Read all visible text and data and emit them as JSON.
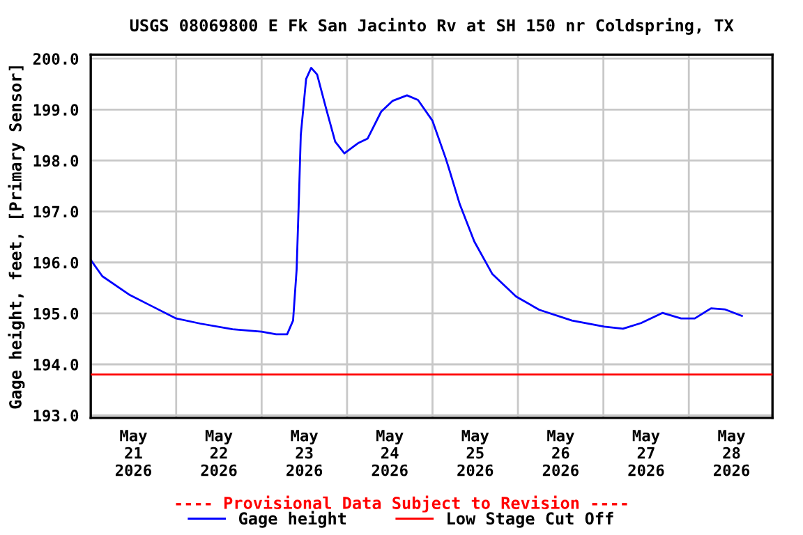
{
  "chart_data": {
    "type": "line",
    "title": "USGS 08069800 E Fk San Jacinto Rv at SH 150 nr Coldspring, TX",
    "ylabel": "Gage height, feet, [Primary Sensor]",
    "annotations": [
      "---- Provisional Data Subject to Revision ----"
    ],
    "series": [
      {
        "name": "Gage height",
        "color": "#0000ff",
        "x": [
          "2026-05-21T00:00",
          "2026-05-21T03:15",
          "2026-05-21T11:00",
          "2026-05-21T17:30",
          "2026-05-22T00:00",
          "2026-05-22T06:45",
          "2026-05-22T15:50",
          "2026-05-23T00:00",
          "2026-05-23T04:05",
          "2026-05-23T07:10",
          "2026-05-23T08:50",
          "2026-05-23T09:50",
          "2026-05-23T10:30",
          "2026-05-23T11:00",
          "2026-05-23T12:30",
          "2026-05-23T13:55",
          "2026-05-23T15:35",
          "2026-05-23T18:00",
          "2026-05-23T20:40",
          "2026-05-23T23:15",
          "2026-05-24T03:05",
          "2026-05-24T05:45",
          "2026-05-24T09:35",
          "2026-05-24T12:45",
          "2026-05-24T16:50",
          "2026-05-24T19:55",
          "2026-05-25T00:00",
          "2026-05-25T03:35",
          "2026-05-25T04:30",
          "2026-05-25T07:40",
          "2026-05-25T11:45",
          "2026-05-25T16:50",
          "2026-05-25T23:30",
          "2026-05-26T06:00",
          "2026-05-26T15:10",
          "2026-05-27T00:15",
          "2026-05-27T05:30",
          "2026-05-27T10:35",
          "2026-05-27T16:35",
          "2026-05-27T21:50",
          "2026-05-28T01:40",
          "2026-05-28T06:15",
          "2026-05-28T10:05",
          "2026-05-28T14:55"
        ],
        "values": [
          196.05,
          195.73,
          195.36,
          195.13,
          194.9,
          194.8,
          194.69,
          194.64,
          194.59,
          194.59,
          194.86,
          195.86,
          197.32,
          198.5,
          199.6,
          199.82,
          199.69,
          199.05,
          198.37,
          198.14,
          198.34,
          198.43,
          198.96,
          199.17,
          199.28,
          199.19,
          198.78,
          198.07,
          197.87,
          197.14,
          196.41,
          195.77,
          195.33,
          195.07,
          194.86,
          194.74,
          194.7,
          194.81,
          195.01,
          194.9,
          194.9,
          195.1,
          195.08,
          194.95
        ]
      }
    ],
    "ref_lines": [
      {
        "axis": "y",
        "value": 193.8,
        "label": "Low Stage Cut Off",
        "color": "#ff0000"
      }
    ],
    "xlim": [
      "2026-05-21T00:00",
      "2026-05-28T23:30"
    ],
    "xticks": [
      {
        "value": "2026-05-21T12:00",
        "label": "May\n21\n2026"
      },
      {
        "value": "2026-05-22T00:00",
        "label": null
      },
      {
        "value": "2026-05-22T12:00",
        "label": "May\n22\n2026"
      },
      {
        "value": "2026-05-23T00:00",
        "label": null
      },
      {
        "value": "2026-05-23T12:00",
        "label": "May\n23\n2026"
      },
      {
        "value": "2026-05-24T00:00",
        "label": null
      },
      {
        "value": "2026-05-24T12:00",
        "label": "May\n24\n2026"
      },
      {
        "value": "2026-05-25T00:00",
        "label": null
      },
      {
        "value": "2026-05-25T12:00",
        "label": "May\n25\n2026"
      },
      {
        "value": "2026-05-26T00:00",
        "label": null
      },
      {
        "value": "2026-05-26T12:00",
        "label": "May\n26\n2026"
      },
      {
        "value": "2026-05-27T00:00",
        "label": null
      },
      {
        "value": "2026-05-27T12:00",
        "label": "May\n27\n2026"
      },
      {
        "value": "2026-05-28T00:00",
        "label": null
      },
      {
        "value": "2026-05-28T12:00",
        "label": "May\n28\n2026"
      }
    ],
    "ylim": [
      192.95,
      200.08
    ],
    "yticks": [
      {
        "value": 193,
        "label": "193.0"
      },
      {
        "value": 194,
        "label": "194.0"
      },
      {
        "value": 195,
        "label": "195.0"
      },
      {
        "value": 196,
        "label": "196.0"
      },
      {
        "value": 197,
        "label": "197.0"
      },
      {
        "value": 198,
        "label": "198.0"
      },
      {
        "value": 199,
        "label": "199.0"
      },
      {
        "value": 200,
        "label": "200.0"
      }
    ],
    "grid": true,
    "legend": "bottom",
    "line_style": "solid",
    "marker": "none"
  }
}
